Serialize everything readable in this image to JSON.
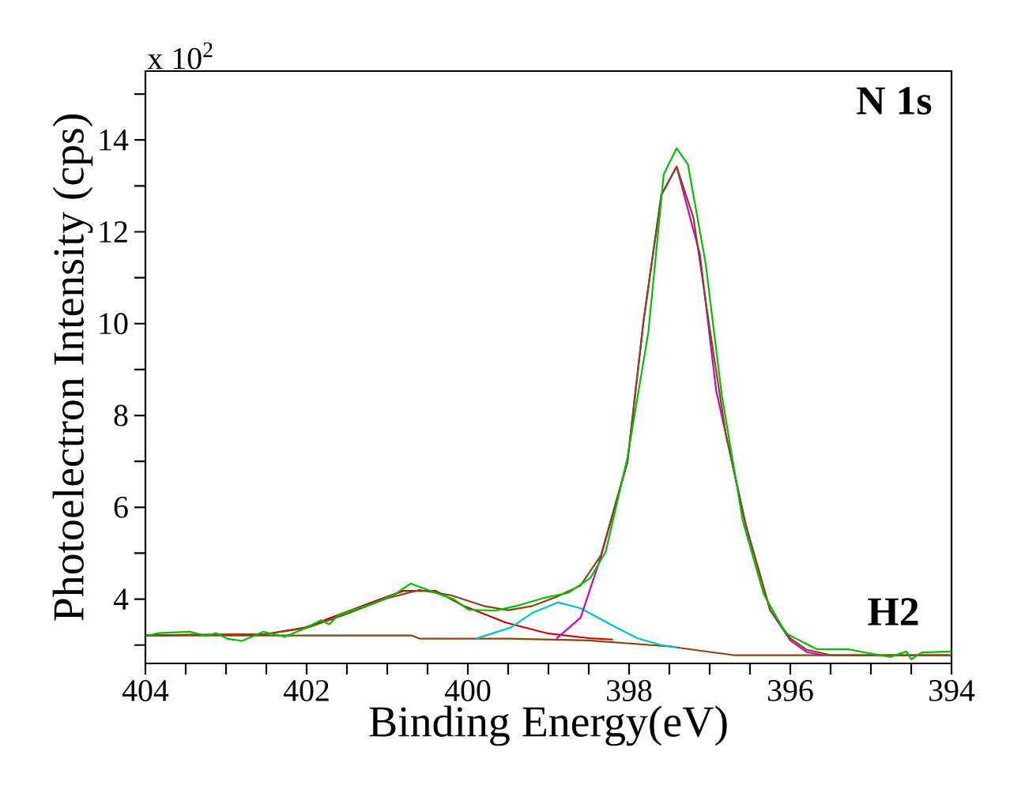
{
  "chart_data": {
    "type": "line",
    "xlabel": "Binding Energy(eV)",
    "ylabel": "Photoelectron Intensity (cps)",
    "annotations": [
      "x 10$^{2}$",
      "**N 1s**",
      "**H2**"
    ],
    "xlim": [
      404,
      394
    ],
    "ylim": [
      2.6,
      15.5
    ],
    "xticks": [
      404,
      {
        "value": 403.5,
        "label": null
      },
      {
        "value": 403,
        "label": null
      },
      {
        "value": 402.5,
        "label": null
      },
      402,
      {
        "value": 401.5,
        "label": null
      },
      {
        "value": 401,
        "label": null
      },
      {
        "value": 400.5,
        "label": null
      },
      400,
      {
        "value": 399.5,
        "label": null
      },
      {
        "value": 399,
        "label": null
      },
      {
        "value": 398.5,
        "label": null
      },
      398,
      {
        "value": 397.5,
        "label": null
      },
      {
        "value": 397,
        "label": null
      },
      {
        "value": 396.5,
        "label": null
      },
      396,
      {
        "value": 395.5,
        "label": null
      },
      {
        "value": 395,
        "label": null
      },
      {
        "value": 394.5,
        "label": null
      },
      394
    ],
    "yticks": [
      {
        "value": 3,
        "label": null
      },
      4,
      {
        "value": 5,
        "label": null
      },
      6,
      {
        "value": 7,
        "label": null
      },
      8,
      {
        "value": 9,
        "label": null
      },
      10,
      {
        "value": 11,
        "label": null
      },
      12,
      {
        "value": 13,
        "label": null
      },
      14,
      {
        "value": 15,
        "label": null
      }
    ],
    "marker": "none",
    "line_style": "solid",
    "series": [
      {
        "color": "#8b4513",
        "x": [
          404,
          400.7,
          400.6,
          399.5,
          398.5,
          397.5,
          397.0,
          396.7,
          394
        ],
        "values": [
          3.21,
          3.21,
          3.14,
          3.14,
          3.1,
          2.97,
          2.85,
          2.78,
          2.78
        ]
      },
      {
        "color": "#cc0000",
        "x": [
          404,
          402.5,
          402.02,
          401.24,
          400.8,
          400.4,
          400.06,
          399.53,
          399.0,
          398.5,
          398.2
        ],
        "values": [
          3.21,
          3.24,
          3.38,
          3.9,
          4.18,
          4.18,
          3.86,
          3.49,
          3.25,
          3.15,
          3.12
        ]
      },
      {
        "color": "#00c0d0",
        "x": [
          399.9,
          399.47,
          399.2,
          398.88,
          398.6,
          398.2,
          397.9,
          397.6,
          397.4
        ],
        "values": [
          3.14,
          3.38,
          3.7,
          3.93,
          3.8,
          3.42,
          3.15,
          3.0,
          2.95
        ]
      },
      {
        "color": "#cc00cc",
        "x": [
          398.9,
          398.6,
          398.35,
          398.02,
          397.82,
          397.6,
          397.41,
          397.12,
          396.92,
          396.55,
          396.25,
          396.0,
          395.8,
          395.6
        ],
        "values": [
          3.14,
          3.6,
          4.92,
          6.98,
          10.06,
          12.8,
          13.42,
          11.5,
          8.55,
          5.6,
          3.76,
          3.1,
          2.85,
          2.78
        ]
      },
      {
        "color": "#8b4513",
        "x": [
          404,
          402.5,
          402,
          401.5,
          401,
          400.6,
          400.2,
          399.8,
          399.5,
          399.2,
          398.9,
          398.6,
          398.35,
          398.02,
          397.82,
          397.6,
          397.41,
          397.2,
          397.0,
          396.8,
          396.55,
          396.25,
          396,
          395.8,
          395.5,
          394
        ],
        "values": [
          3.21,
          3.24,
          3.37,
          3.68,
          4.02,
          4.2,
          4.08,
          3.85,
          3.76,
          3.85,
          4.05,
          4.3,
          4.95,
          7.0,
          10.06,
          12.8,
          13.42,
          12.3,
          9.9,
          7.6,
          5.6,
          3.76,
          3.15,
          2.9,
          2.78,
          2.78
        ]
      },
      {
        "color": "#00c000",
        "x": [
          403.97,
          403.84,
          403.45,
          403.25,
          403.12,
          402.99,
          402.8,
          402.54,
          402.27,
          402.01,
          401.82,
          401.72,
          401.62,
          401.42,
          401.16,
          400.9,
          400.71,
          400.45,
          400.18,
          399.99,
          399.66,
          399.4,
          399.07,
          398.75,
          398.48,
          398.29,
          398.02,
          397.76,
          397.57,
          397.41,
          397.27,
          397.05,
          396.85,
          396.59,
          396.33,
          396.06,
          395.67,
          395.28,
          395.08,
          394.76,
          394.56,
          394.5,
          394.37,
          394.0
        ],
        "values": [
          3.2,
          3.26,
          3.29,
          3.2,
          3.26,
          3.14,
          3.09,
          3.29,
          3.18,
          3.37,
          3.54,
          3.45,
          3.63,
          3.77,
          3.91,
          4.11,
          4.34,
          4.17,
          4.0,
          3.77,
          3.75,
          3.85,
          4.02,
          4.14,
          4.46,
          5.03,
          7.08,
          9.82,
          13.25,
          13.82,
          13.47,
          11.31,
          8.45,
          5.71,
          4.11,
          3.26,
          2.91,
          2.91,
          2.84,
          2.74,
          2.86,
          2.69,
          2.84,
          2.86
        ]
      }
    ]
  }
}
